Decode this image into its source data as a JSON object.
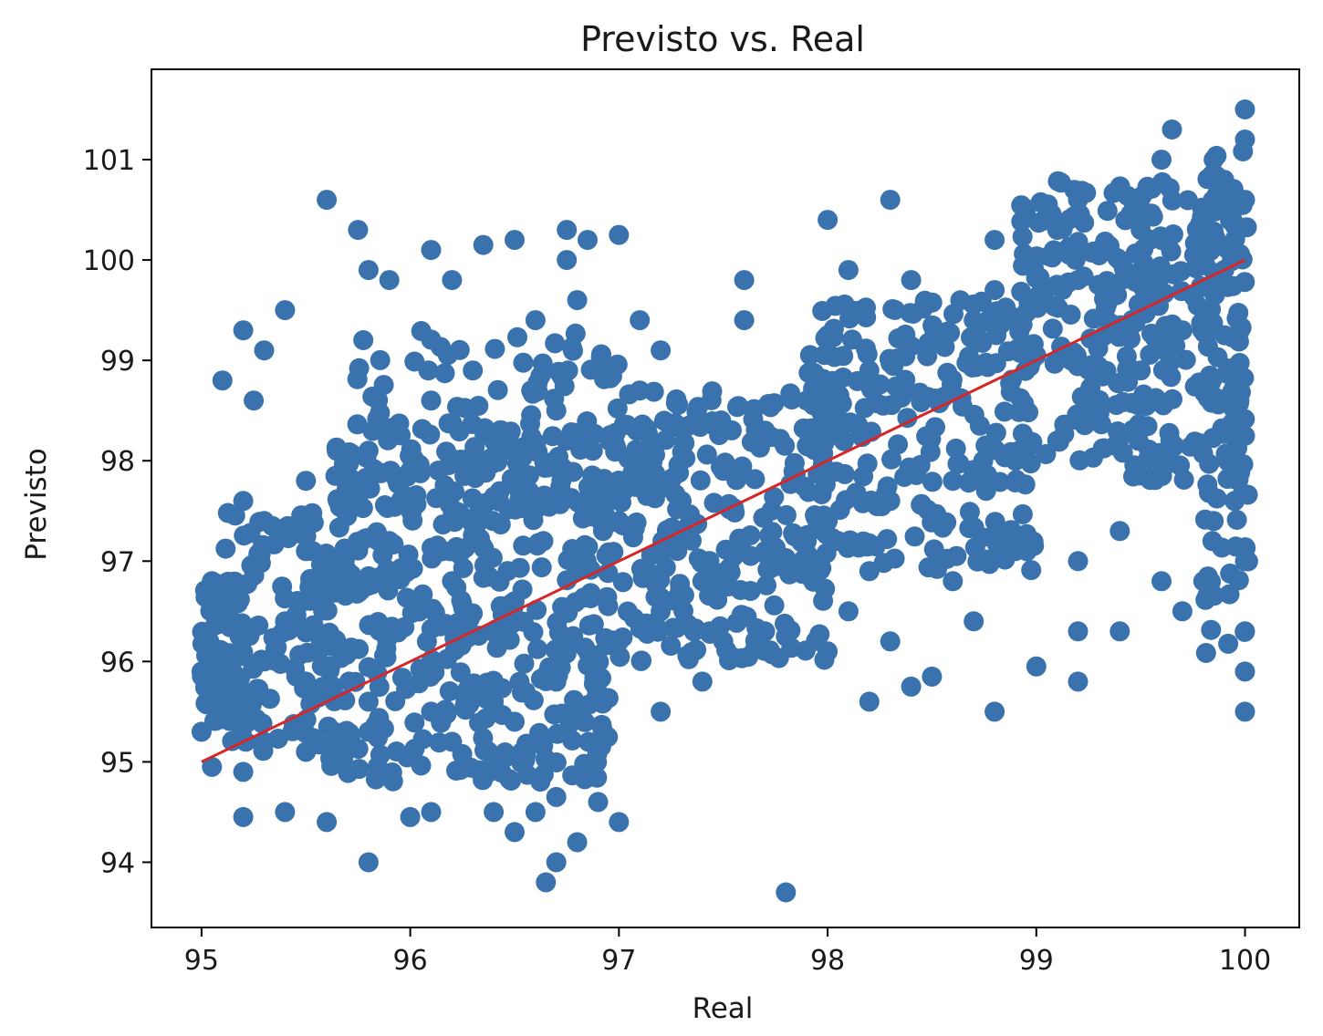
{
  "chart_data": {
    "type": "scatter",
    "title": "Previsto vs. Real",
    "xlabel": "Real",
    "ylabel": "Previsto",
    "xlim": [
      94.76,
      100.26
    ],
    "ylim": [
      93.35,
      101.9
    ],
    "x_ticks": [
      "95",
      "96",
      "97",
      "98",
      "99",
      "100"
    ],
    "y_ticks": [
      "94",
      "95",
      "96",
      "97",
      "98",
      "99",
      "100",
      "101"
    ],
    "grid": false,
    "point_color": "#3a72ad",
    "line_color": "#d62728",
    "reference_line": {
      "x": [
        95,
        100
      ],
      "y": [
        95,
        100
      ]
    },
    "points": [
      [
        95.6,
        100.6
      ],
      [
        95.75,
        100.3
      ],
      [
        95.8,
        99.9
      ],
      [
        95.2,
        99.3
      ],
      [
        95.4,
        99.5
      ],
      [
        95.1,
        98.8
      ],
      [
        95.25,
        98.6
      ],
      [
        95.3,
        99.1
      ],
      [
        96.1,
        100.1
      ],
      [
        96.35,
        100.15
      ],
      [
        96.5,
        100.2
      ],
      [
        96.75,
        100.3
      ],
      [
        96.85,
        100.2
      ],
      [
        97.0,
        100.25
      ],
      [
        96.75,
        100.0
      ],
      [
        95.9,
        99.8
      ],
      [
        96.2,
        99.8
      ],
      [
        97.1,
        99.4
      ],
      [
        97.1,
        98.7
      ],
      [
        97.2,
        99.1
      ],
      [
        98.3,
        100.6
      ],
      [
        98.0,
        100.4
      ],
      [
        98.1,
        99.9
      ],
      [
        97.6,
        99.8
      ],
      [
        97.6,
        99.4
      ],
      [
        98.95,
        100.5
      ],
      [
        99.1,
        100.3
      ],
      [
        99.2,
        100.6
      ],
      [
        99.6,
        101.0
      ],
      [
        99.65,
        101.3
      ],
      [
        99.85,
        101.0
      ],
      [
        100.0,
        101.5
      ],
      [
        100.0,
        101.2
      ],
      [
        99.9,
        100.8
      ],
      [
        99.5,
        100.3
      ],
      [
        98.8,
        100.2
      ],
      [
        98.4,
        99.8
      ],
      [
        98.8,
        99.7
      ],
      [
        95.8,
        94.0
      ],
      [
        95.2,
        94.45
      ],
      [
        95.4,
        94.5
      ],
      [
        95.6,
        94.4
      ],
      [
        96.0,
        94.45
      ],
      [
        96.1,
        94.5
      ],
      [
        96.4,
        94.5
      ],
      [
        96.5,
        94.3
      ],
      [
        96.65,
        93.8
      ],
      [
        96.7,
        94.0
      ],
      [
        96.8,
        94.2
      ],
      [
        96.6,
        94.5
      ],
      [
        96.7,
        94.65
      ],
      [
        96.9,
        94.6
      ],
      [
        97.0,
        94.4
      ],
      [
        97.8,
        93.7
      ],
      [
        95.0,
        95.3
      ],
      [
        95.1,
        95.6
      ],
      [
        95.2,
        94.9
      ],
      [
        95.05,
        94.95
      ],
      [
        97.2,
        95.5
      ],
      [
        97.4,
        95.8
      ],
      [
        98.2,
        95.6
      ],
      [
        98.4,
        95.75
      ],
      [
        98.5,
        95.85
      ],
      [
        98.8,
        95.5
      ],
      [
        99.0,
        95.95
      ],
      [
        99.2,
        95.8
      ],
      [
        99.2,
        96.3
      ],
      [
        99.4,
        96.3
      ],
      [
        99.6,
        96.8
      ],
      [
        99.7,
        96.5
      ],
      [
        99.8,
        96.8
      ],
      [
        98.0,
        96.1
      ],
      [
        98.3,
        96.2
      ],
      [
        98.7,
        96.4
      ],
      [
        97.7,
        96.3
      ],
      [
        97.8,
        96.25
      ],
      [
        100.0,
        95.5
      ],
      [
        100.0,
        95.9
      ],
      [
        100.0,
        96.3
      ],
      [
        100.0,
        97.0
      ],
      [
        99.95,
        97.6
      ],
      [
        99.85,
        97.4
      ],
      [
        99.4,
        97.3
      ],
      [
        99.2,
        97.0
      ],
      [
        98.9,
        97.1
      ],
      [
        98.6,
        96.8
      ],
      [
        98.2,
        96.9
      ],
      [
        97.9,
        97.2
      ],
      [
        98.1,
        96.5
      ],
      [
        97.5,
        96.2
      ],
      [
        96.9,
        96.0
      ],
      [
        96.5,
        95.4
      ],
      [
        96.2,
        95.2
      ],
      [
        95.8,
        95.3
      ],
      [
        95.5,
        95.1
      ],
      [
        95.3,
        95.2
      ],
      [
        95.2,
        95.7
      ],
      [
        95.1,
        96.1
      ],
      [
        95.4,
        96.4
      ],
      [
        95.7,
        96.9
      ],
      [
        95.5,
        97.1
      ],
      [
        95.3,
        97.4
      ],
      [
        95.2,
        97.6
      ],
      [
        95.5,
        97.8
      ],
      [
        95.8,
        98.1
      ],
      [
        96.1,
        98.6
      ],
      [
        96.3,
        98.9
      ],
      [
        96.6,
        99.4
      ],
      [
        96.8,
        99.6
      ],
      [
        96.95,
        98.9
      ],
      [
        96.7,
        98.5
      ],
      [
        96.4,
        98.2
      ],
      [
        96.0,
        97.9
      ],
      [
        95.9,
        97.2
      ],
      [
        96.2,
        96.8
      ],
      [
        96.5,
        96.6
      ],
      [
        96.8,
        96.9
      ],
      [
        97.0,
        97.4
      ],
      [
        97.3,
        97.6
      ],
      [
        97.5,
        97.9
      ],
      [
        97.7,
        98.3
      ],
      [
        97.9,
        98.6
      ],
      [
        98.2,
        98.9
      ],
      [
        98.5,
        99.2
      ],
      [
        98.7,
        99.4
      ],
      [
        99.0,
        99.6
      ],
      [
        99.2,
        99.8
      ],
      [
        99.4,
        100.0
      ],
      [
        99.6,
        100.2
      ],
      [
        99.8,
        100.4
      ],
      [
        100.0,
        100.6
      ],
      [
        99.9,
        99.9
      ],
      [
        99.7,
        99.3
      ],
      [
        99.5,
        98.9
      ],
      [
        99.3,
        98.5
      ],
      [
        99.1,
        98.2
      ],
      [
        98.9,
        98.0
      ],
      [
        98.6,
        97.8
      ],
      [
        98.3,
        97.6
      ],
      [
        98.0,
        97.4
      ],
      [
        97.7,
        97.1
      ],
      [
        97.4,
        96.8
      ],
      [
        97.2,
        96.5
      ],
      [
        97.0,
        96.2
      ],
      [
        96.7,
        95.8
      ],
      [
        96.4,
        95.6
      ],
      [
        96.1,
        95.5
      ],
      [
        95.8,
        95.6
      ],
      [
        95.5,
        95.8
      ],
      [
        95.3,
        96.0
      ],
      [
        95.1,
        96.4
      ],
      [
        95.05,
        96.8
      ],
      [
        95.0,
        95.9
      ]
    ],
    "clouds": [
      {
        "x": [
          95.0,
          95.2
        ],
        "y": [
          95.4,
          96.8
        ],
        "density": 90
      },
      {
        "x": [
          95.1,
          95.7
        ],
        "y": [
          95.1,
          97.5
        ],
        "density": 110
      },
      {
        "x": [
          95.6,
          97.0
        ],
        "y": [
          94.8,
          98.4
        ],
        "density": 420
      },
      {
        "x": [
          95.7,
          97.0
        ],
        "y": [
          97.5,
          99.3
        ],
        "density": 110
      },
      {
        "x": [
          97.0,
          98.0
        ],
        "y": [
          96.0,
          98.7
        ],
        "density": 240
      },
      {
        "x": [
          97.9,
          99.0
        ],
        "y": [
          96.9,
          99.6
        ],
        "density": 240
      },
      {
        "x": [
          98.9,
          100.0
        ],
        "y": [
          97.8,
          100.8
        ],
        "density": 300
      },
      {
        "x": [
          99.8,
          100.02
        ],
        "y": [
          96.0,
          101.1
        ],
        "density": 60
      }
    ]
  }
}
